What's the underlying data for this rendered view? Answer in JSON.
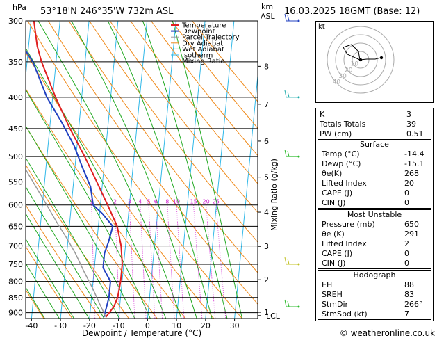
{
  "header": {
    "hpa_unit": "hPa",
    "location": "53°18'N  246°35'W  732m  ASL",
    "km_unit": "km",
    "asl_unit": "ASL",
    "datetime": "16.03.2025  18GMT  (Base: 12)"
  },
  "chart_data": {
    "type": "line",
    "xlabel": "Dewpoint / Temperature (°C)",
    "ylabel": "",
    "y2label": "Mixing Ratio (g/kg)",
    "x_ticks": [
      -40,
      -30,
      -20,
      -10,
      0,
      10,
      20,
      30
    ],
    "pressure_ticks": [
      300,
      350,
      400,
      450,
      500,
      550,
      600,
      650,
      700,
      750,
      800,
      850,
      900
    ],
    "ylim": [
      300,
      920
    ],
    "xlim": [
      -42,
      38
    ],
    "height_ticks_km": [
      1,
      2,
      3,
      4,
      5,
      6,
      7,
      8
    ],
    "height_tick_labels": [
      "1",
      "2",
      "3",
      "4",
      "5",
      "6",
      "7",
      "8"
    ],
    "lcl_label": "LCL",
    "lcl_pressure": 910,
    "mixing_ratio_labels": [
      "1",
      "2",
      "3",
      "4",
      "5",
      "6",
      "8",
      "10",
      "15",
      "20",
      "25"
    ],
    "legend": [
      "Temperature",
      "Dewpoint",
      "Parcel Trajectory",
      "Dry Adiabat",
      "Wet Adiabat",
      "Isotherm",
      "Mixing Ratio"
    ],
    "legend_placement": "top-right",
    "series": [
      {
        "name": "Temperature",
        "color": "#e02020",
        "points": [
          [
            -14.4,
            915
          ],
          [
            -12,
            880
          ],
          [
            -11,
            850
          ],
          [
            -10.5,
            800
          ],
          [
            -10.5,
            750
          ],
          [
            -11.5,
            700
          ],
          [
            -13.5,
            650
          ],
          [
            -17.5,
            600
          ],
          [
            -22,
            550
          ],
          [
            -27,
            500
          ],
          [
            -33,
            450
          ],
          [
            -39,
            400
          ],
          [
            -45,
            350
          ],
          [
            -47,
            330
          ],
          [
            -49,
            300
          ]
        ]
      },
      {
        "name": "Dewpoint",
        "color": "#2040c0",
        "points": [
          [
            -15.1,
            915
          ],
          [
            -14.5,
            880
          ],
          [
            -14,
            850
          ],
          [
            -14,
            800
          ],
          [
            -17,
            760
          ],
          [
            -17,
            720
          ],
          [
            -16,
            690
          ],
          [
            -15,
            650
          ],
          [
            -19,
            620
          ],
          [
            -22.5,
            600
          ],
          [
            -24,
            560
          ],
          [
            -27.5,
            520
          ],
          [
            -31,
            480
          ],
          [
            -36,
            440
          ],
          [
            -42,
            400
          ],
          [
            -48,
            350
          ],
          [
            -52,
            330
          ],
          [
            -58,
            300
          ]
        ]
      },
      {
        "name": "Parcel Trajectory",
        "color": "#999999",
        "points": [
          [
            -14.4,
            915
          ],
          [
            -17,
            870
          ],
          [
            -20,
            820
          ],
          [
            -23.5,
            770
          ],
          [
            -27,
            720
          ],
          [
            -30.5,
            680
          ],
          [
            -34.5,
            640
          ],
          [
            -38.5,
            600
          ],
          [
            -44,
            550
          ],
          [
            -50,
            500
          ],
          [
            -56,
            450
          ],
          [
            -63,
            400
          ]
        ]
      }
    ],
    "wind_barb_colors": [
      "#2040c0",
      "#1aaaaa",
      "#2cbb2c",
      "#c0c020",
      "#2cbb2c"
    ]
  },
  "hodograph": {
    "unit_label": "kt",
    "ring_labels": [
      "10",
      "20",
      "30",
      "40"
    ]
  },
  "indices": {
    "rows": [
      {
        "label": "K",
        "value": "3"
      },
      {
        "label": "Totals Totals",
        "value": "39"
      },
      {
        "label": "PW (cm)",
        "value": "0.51"
      }
    ]
  },
  "surface": {
    "title": "Surface",
    "rows": [
      {
        "label": "Temp (°C)",
        "value": "-14.4"
      },
      {
        "label": "Dewp (°C)",
        "value": "-15.1"
      },
      {
        "label": "θe(K)",
        "value": "268"
      },
      {
        "label": "Lifted Index",
        "value": "20"
      },
      {
        "label": "CAPE (J)",
        "value": "0"
      },
      {
        "label": "CIN (J)",
        "value": "0"
      }
    ]
  },
  "most_unstable": {
    "title": "Most Unstable",
    "rows": [
      {
        "label": "Pressure (mb)",
        "value": "650"
      },
      {
        "label": "θe (K)",
        "value": "291"
      },
      {
        "label": "Lifted Index",
        "value": "2"
      },
      {
        "label": "CAPE (J)",
        "value": "0"
      },
      {
        "label": "CIN (J)",
        "value": "0"
      }
    ]
  },
  "hodograph_table": {
    "title": "Hodograph",
    "rows": [
      {
        "label": "EH",
        "value": "88"
      },
      {
        "label": "SREH",
        "value": "83"
      },
      {
        "label": "StmDir",
        "value": "266°"
      },
      {
        "label": "StmSpd (kt)",
        "value": "7"
      }
    ]
  },
  "footer": {
    "copyright": "© weatheronline.co.uk"
  }
}
